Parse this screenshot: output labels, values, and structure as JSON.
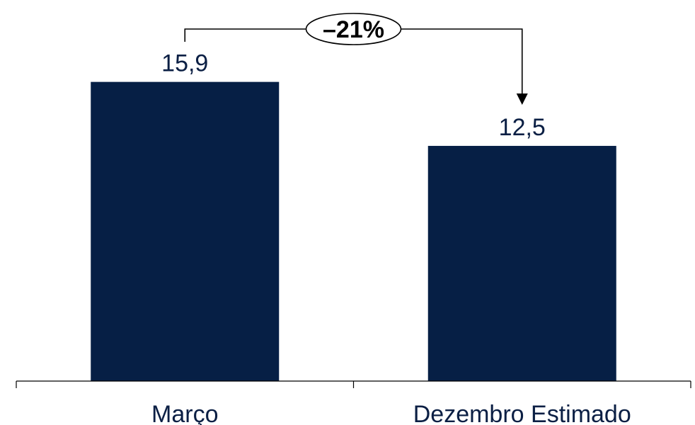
{
  "chart_data": {
    "type": "bar",
    "categories": [
      "Março",
      "Dezembro Estimado"
    ],
    "values": [
      15.9,
      12.5
    ],
    "value_labels": [
      "15,9",
      "12,5"
    ],
    "title": "",
    "xlabel": "",
    "ylabel": "",
    "ylim": [
      0,
      19.5
    ],
    "grid": false,
    "legend": "none",
    "bar_color": "#061f45",
    "label_color": "#0b1f44",
    "annotation": {
      "text": "–21%",
      "from_category": "Março",
      "to_category": "Dezembro Estimado"
    }
  }
}
